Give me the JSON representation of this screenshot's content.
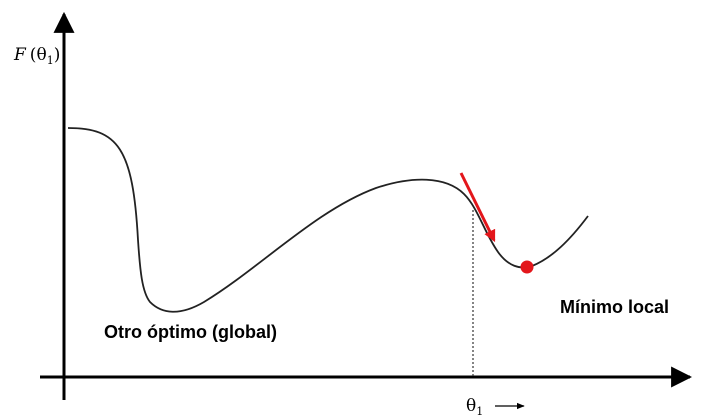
{
  "diagram": {
    "y_axis_label": {
      "func": "F",
      "param": "θ",
      "sub": "1"
    },
    "x_axis_label": {
      "param": "θ",
      "sub": "1"
    },
    "global_optimum_label": "Otro óptimo (global)",
    "local_minimum_label": "Mínimo local",
    "colors": {
      "curve": "#222222",
      "axes": "#000000",
      "arrow": "#e3161b",
      "marker": "#e3161b",
      "guide": "#333333"
    }
  }
}
